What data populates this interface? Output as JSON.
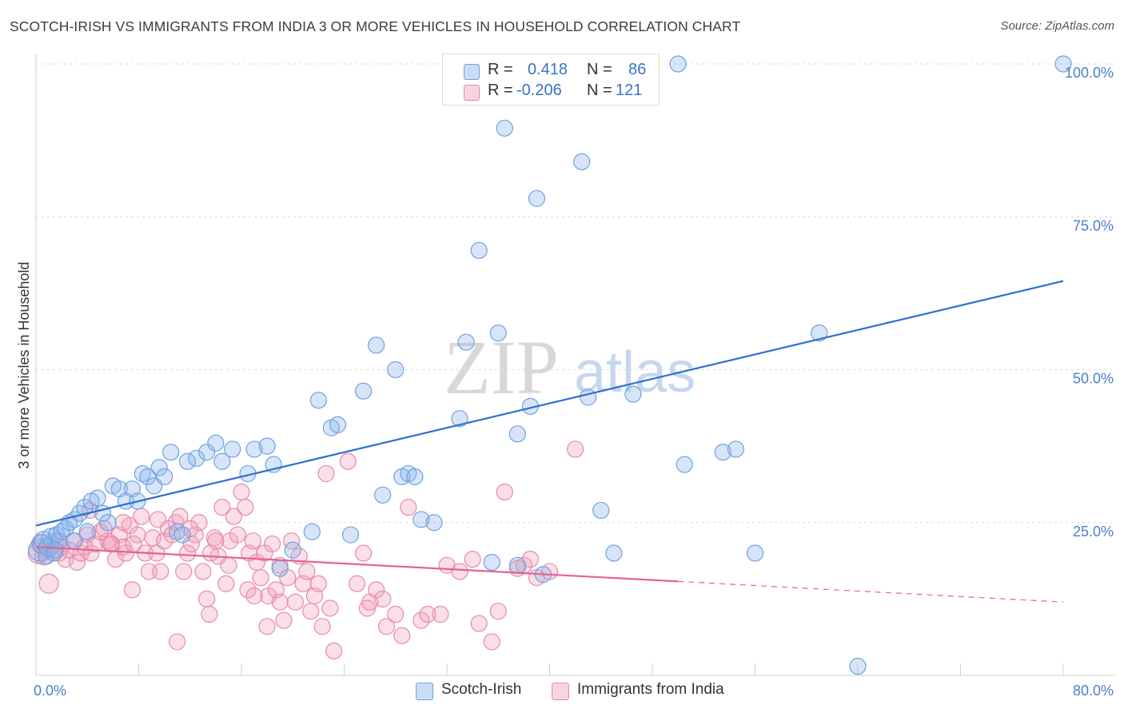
{
  "title": "SCOTCH-IRISH VS IMMIGRANTS FROM INDIA 3 OR MORE VEHICLES IN HOUSEHOLD CORRELATION CHART",
  "source": "Source: ZipAtlas.com",
  "watermark": {
    "zip": "ZIP",
    "atlas": "atlas"
  },
  "colors": {
    "blue": "#6fa1e0",
    "blue_fill": "rgba(140,180,235,0.35)",
    "blue_line": "#2f6fce",
    "pink": "#e88aa8",
    "pink_fill": "rgba(240,160,190,0.35)",
    "pink_line": "#e2648f",
    "tick_text": "#4a7fc9",
    "grid": "#d9d9d9"
  },
  "legend": {
    "rows": [
      {
        "r_label": "R =",
        "r_value": "0.418",
        "n_label": "N =",
        "n_value": "86",
        "color": "blue"
      },
      {
        "r_label": "R =",
        "r_value": "-0.206",
        "n_label": "N =",
        "n_value": "121",
        "color": "pink"
      }
    ]
  },
  "bottom_legend": [
    {
      "label": "Scotch-Irish",
      "color": "blue"
    },
    {
      "label": "Immigrants from India",
      "color": "pink"
    }
  ],
  "chart_data": {
    "type": "scatter",
    "xlabel": "",
    "ylabel": "3 or more Vehicles in Household",
    "xlim": [
      0,
      80
    ],
    "ylim": [
      0,
      100
    ],
    "x_ticks": [
      "0.0%",
      "80.0%"
    ],
    "y_ticks": [
      {
        "value": 100,
        "label": "100.0%"
      },
      {
        "value": 75,
        "label": "75.0%"
      },
      {
        "value": 50,
        "label": "50.0%"
      },
      {
        "value": 25,
        "label": "25.0%"
      }
    ],
    "series": [
      {
        "name": "Scotch-Irish",
        "color": "blue",
        "trend": {
          "x0": 0,
          "y0": 24.5,
          "x1": 80,
          "y1": 64.5,
          "dashed_from": null
        },
        "points": [
          [
            0.3,
            20.5
          ],
          [
            0.5,
            21.5
          ],
          [
            0.6,
            22
          ],
          [
            0.8,
            19.5
          ],
          [
            1,
            21
          ],
          [
            1.2,
            22.5
          ],
          [
            1.4,
            20
          ],
          [
            1.6,
            23
          ],
          [
            1.8,
            22
          ],
          [
            2,
            23.5
          ],
          [
            2.3,
            24
          ],
          [
            2.6,
            25
          ],
          [
            3,
            25.5
          ],
          [
            3.4,
            26.5
          ],
          [
            3.8,
            27.5
          ],
          [
            4.3,
            28.5
          ],
          [
            4.8,
            29
          ],
          [
            5.2,
            26.5
          ],
          [
            5.6,
            25
          ],
          [
            6,
            31
          ],
          [
            6.5,
            30.5
          ],
          [
            7,
            28.5
          ],
          [
            7.5,
            30.5
          ],
          [
            7.9,
            28.5
          ],
          [
            8.3,
            33
          ],
          [
            8.7,
            32.5
          ],
          [
            9.2,
            31
          ],
          [
            9.6,
            34
          ],
          [
            10,
            32.5
          ],
          [
            10.5,
            36.5
          ],
          [
            11,
            23.5
          ],
          [
            11.4,
            23
          ],
          [
            11.8,
            35
          ],
          [
            12.5,
            35.5
          ],
          [
            13.3,
            36.5
          ],
          [
            14,
            38
          ],
          [
            14.5,
            35
          ],
          [
            15.3,
            37
          ],
          [
            16.5,
            33
          ],
          [
            17,
            37
          ],
          [
            18,
            37.5
          ],
          [
            18.5,
            34.5
          ],
          [
            19,
            17.5
          ],
          [
            20,
            20.5
          ],
          [
            21.5,
            23.5
          ],
          [
            22,
            45
          ],
          [
            23,
            40.5
          ],
          [
            23.5,
            41
          ],
          [
            24.5,
            23
          ],
          [
            25.5,
            46.5
          ],
          [
            26.5,
            54
          ],
          [
            27,
            29.5
          ],
          [
            28,
            50
          ],
          [
            28.5,
            32.5
          ],
          [
            29,
            33
          ],
          [
            29.5,
            32.5
          ],
          [
            30,
            25.5
          ],
          [
            31,
            25
          ],
          [
            33,
            42
          ],
          [
            33.5,
            54.5
          ],
          [
            34.5,
            69.5
          ],
          [
            35.5,
            18.5
          ],
          [
            36,
            56
          ],
          [
            36.5,
            89.5
          ],
          [
            37.5,
            39.5
          ],
          [
            37.5,
            18
          ],
          [
            38.5,
            44
          ],
          [
            39,
            78
          ],
          [
            39.5,
            16.5
          ],
          [
            42.5,
            84
          ],
          [
            43,
            45.5
          ],
          [
            44,
            27
          ],
          [
            45,
            20
          ],
          [
            46.5,
            46
          ],
          [
            50,
            100
          ],
          [
            50.5,
            34.5
          ],
          [
            53.5,
            36.5
          ],
          [
            54.5,
            37
          ],
          [
            56,
            20
          ],
          [
            61,
            56
          ],
          [
            64,
            1.5
          ],
          [
            80,
            100
          ],
          [
            4,
            23.5
          ],
          [
            3,
            22
          ],
          [
            1.5,
            20.5
          ],
          [
            37,
            99.5
          ]
        ],
        "radii": [
          14,
          12,
          12,
          10,
          12,
          12,
          10,
          10,
          10,
          10,
          10,
          10,
          10,
          10,
          10,
          10,
          10,
          10,
          10,
          10,
          10,
          10,
          10,
          10,
          10,
          10,
          10,
          10,
          10,
          10,
          10,
          10,
          10,
          10,
          10,
          10,
          10,
          10,
          10,
          10,
          10,
          10,
          10,
          10,
          10,
          10,
          10,
          10,
          10,
          10,
          10,
          10,
          10,
          10,
          10,
          10,
          10,
          10,
          10,
          10,
          10,
          10,
          10,
          10,
          10,
          10,
          10,
          10,
          10,
          10,
          10,
          10,
          10,
          10,
          10,
          10,
          10,
          10,
          10,
          10,
          10,
          10,
          10,
          10,
          10,
          10
        ]
      },
      {
        "name": "Immigrants from India",
        "color": "pink",
        "trend": {
          "x0": 0,
          "y0": 21,
          "x1": 80,
          "y1": 12,
          "dashed_from": 50
        },
        "points": [
          [
            0.2,
            20
          ],
          [
            0.4,
            21.5
          ],
          [
            0.6,
            19.5
          ],
          [
            0.8,
            20.5
          ],
          [
            1,
            15
          ],
          [
            1.2,
            21
          ],
          [
            1.5,
            22
          ],
          [
            1.8,
            20
          ],
          [
            2,
            21
          ],
          [
            2.3,
            19
          ],
          [
            2.6,
            20.5
          ],
          [
            2.9,
            22
          ],
          [
            3.2,
            18.5
          ],
          [
            3.5,
            20
          ],
          [
            3.8,
            21
          ],
          [
            4,
            23
          ],
          [
            4.3,
            20
          ],
          [
            4.6,
            21.5
          ],
          [
            5,
            23.5
          ],
          [
            5.3,
            24
          ],
          [
            5.6,
            22
          ],
          [
            5.9,
            21.5
          ],
          [
            6.2,
            19
          ],
          [
            6.5,
            23
          ],
          [
            6.8,
            21
          ],
          [
            7,
            20
          ],
          [
            7.3,
            24.5
          ],
          [
            7.6,
            21.5
          ],
          [
            7.9,
            23
          ],
          [
            8.2,
            26
          ],
          [
            8.5,
            20
          ],
          [
            8.8,
            17
          ],
          [
            9.1,
            22.5
          ],
          [
            9.4,
            20
          ],
          [
            9.7,
            17
          ],
          [
            10,
            22
          ],
          [
            10.3,
            24
          ],
          [
            10.6,
            23
          ],
          [
            10.9,
            25
          ],
          [
            11.2,
            26
          ],
          [
            11.5,
            17
          ],
          [
            11.8,
            20
          ],
          [
            12.1,
            21.5
          ],
          [
            12.4,
            23
          ],
          [
            12.7,
            25
          ],
          [
            13,
            17
          ],
          [
            13.3,
            12.5
          ],
          [
            13.6,
            20
          ],
          [
            13.9,
            22.5
          ],
          [
            14.2,
            19.5
          ],
          [
            14.5,
            27.5
          ],
          [
            14.8,
            15
          ],
          [
            15.1,
            22
          ],
          [
            15.4,
            26
          ],
          [
            15.7,
            23
          ],
          [
            16,
            30
          ],
          [
            16.3,
            27.5
          ],
          [
            16.6,
            20
          ],
          [
            16.9,
            22
          ],
          [
            17.2,
            18.5
          ],
          [
            17.5,
            16
          ],
          [
            17.8,
            20
          ],
          [
            18.1,
            13
          ],
          [
            18.4,
            21.5
          ],
          [
            18.7,
            14
          ],
          [
            19,
            12
          ],
          [
            19.3,
            9
          ],
          [
            19.6,
            16
          ],
          [
            19.9,
            22
          ],
          [
            20.2,
            12
          ],
          [
            20.5,
            19.5
          ],
          [
            20.8,
            15
          ],
          [
            21.1,
            17
          ],
          [
            21.4,
            10.5
          ],
          [
            21.7,
            13
          ],
          [
            22,
            15
          ],
          [
            22.3,
            8
          ],
          [
            22.6,
            33
          ],
          [
            22.9,
            11
          ],
          [
            23.2,
            4
          ],
          [
            24.3,
            35
          ],
          [
            25.5,
            20
          ],
          [
            25.8,
            11
          ],
          [
            26.5,
            14
          ],
          [
            27,
            12.5
          ],
          [
            27.3,
            8
          ],
          [
            28,
            10
          ],
          [
            28.5,
            6.5
          ],
          [
            29,
            27.5
          ],
          [
            30,
            9
          ],
          [
            31.5,
            10
          ],
          [
            32,
            18
          ],
          [
            34,
            19
          ],
          [
            35.5,
            5.5
          ],
          [
            36.5,
            30
          ],
          [
            37.5,
            17.5
          ],
          [
            38,
            18
          ],
          [
            39,
            16
          ],
          [
            42,
            37
          ],
          [
            5.8,
            21.5
          ],
          [
            6.8,
            25
          ],
          [
            9.5,
            25.5
          ],
          [
            4.2,
            27
          ],
          [
            7.5,
            14
          ],
          [
            11,
            5.5
          ],
          [
            12,
            24
          ],
          [
            16.5,
            14
          ],
          [
            18,
            8
          ],
          [
            13.5,
            10
          ],
          [
            14,
            22
          ],
          [
            15,
            18
          ],
          [
            17,
            13
          ],
          [
            19,
            18
          ],
          [
            25,
            15
          ],
          [
            26,
            12
          ],
          [
            30.5,
            10
          ],
          [
            33,
            17
          ],
          [
            34.5,
            8.5
          ],
          [
            36,
            10.5
          ],
          [
            38.5,
            19
          ],
          [
            40,
            17
          ]
        ],
        "radii": [
          13,
          12,
          11,
          11,
          12,
          10,
          10,
          10,
          10,
          10,
          10,
          10,
          10,
          10,
          10,
          10,
          10,
          10,
          10,
          10,
          10,
          10,
          10,
          10,
          10,
          10,
          10,
          10,
          10,
          10,
          10,
          10,
          10,
          10,
          10,
          10,
          10,
          10,
          10,
          10,
          10,
          10,
          10,
          10,
          10,
          10,
          10,
          10,
          10,
          10,
          10,
          10,
          10,
          10,
          10,
          10,
          10,
          10,
          10,
          10,
          10,
          10,
          10,
          10,
          10,
          10,
          10,
          10,
          10,
          10,
          10,
          10,
          10,
          10,
          10,
          10,
          10,
          10,
          10,
          10,
          10,
          10,
          10,
          10,
          10,
          10,
          10,
          10,
          10,
          10,
          10,
          10,
          10,
          10,
          10,
          10,
          10,
          10,
          10,
          10,
          10,
          10,
          10,
          10,
          10,
          10,
          10,
          10,
          10,
          10,
          10,
          10,
          10,
          10,
          10,
          10,
          10,
          10,
          10,
          10,
          10
        ]
      }
    ]
  }
}
